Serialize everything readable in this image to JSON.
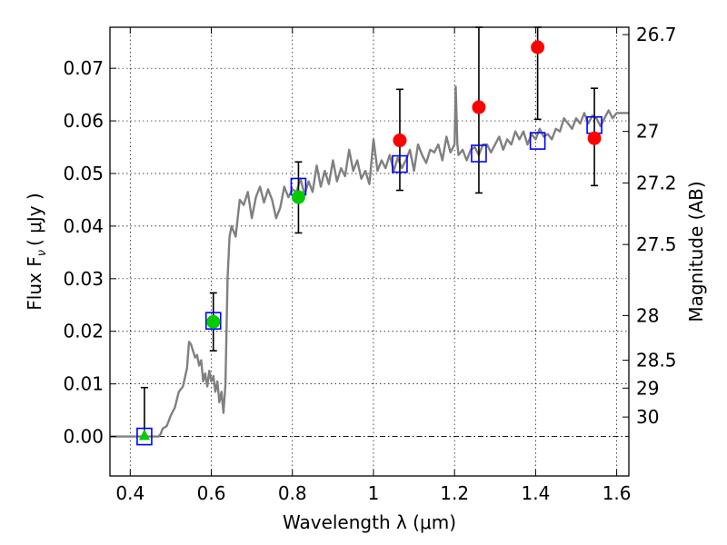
{
  "chart_data": {
    "type": "scatter",
    "xlabel": "Wavelength  λ (μm)",
    "ylabel_left": "Flux  F",
    "ylabel_left_sub": "ν",
    "ylabel_left_unit": "( μJy )",
    "ylabel_right": "Magnitude (AB)",
    "xlim": [
      0.35,
      1.63
    ],
    "ylim": [
      -0.0075,
      0.0778
    ],
    "grid": true,
    "x_ticks": [
      0.4,
      0.6,
      0.8,
      1.0,
      1.2,
      1.4,
      1.6
    ],
    "x_tick_labels": [
      "0.4",
      "0.6",
      "0.8",
      "1",
      "1.2",
      "1.4",
      "1.6"
    ],
    "y_ticks": [
      0.0,
      0.01,
      0.02,
      0.03,
      0.04,
      0.05,
      0.06,
      0.07
    ],
    "y_tick_labels": [
      "0.00",
      "0.01",
      "0.02",
      "0.03",
      "0.04",
      "0.05",
      "0.06",
      "0.07"
    ],
    "mag_ticks": [
      {
        "label": "26.7",
        "flux": 0.0764
      },
      {
        "label": "27",
        "flux": 0.058
      },
      {
        "label": "27.2",
        "flux": 0.0482
      },
      {
        "label": "27.5",
        "flux": 0.0365
      },
      {
        "label": "28",
        "flux": 0.023
      },
      {
        "label": "28.5",
        "flux": 0.0145
      },
      {
        "label": "29",
        "flux": 0.0092
      },
      {
        "label": "30",
        "flux": 0.0037
      }
    ],
    "model_spectrum": {
      "color": "#808080",
      "x": [
        0.35,
        0.47,
        0.475,
        0.48,
        0.49,
        0.5,
        0.51,
        0.52,
        0.53,
        0.54,
        0.545,
        0.55,
        0.56,
        0.565,
        0.57,
        0.575,
        0.58,
        0.585,
        0.59,
        0.595,
        0.6,
        0.605,
        0.61,
        0.615,
        0.62,
        0.625,
        0.63,
        0.635,
        0.64,
        0.645,
        0.65,
        0.66,
        0.67,
        0.68,
        0.69,
        0.7,
        0.71,
        0.72,
        0.73,
        0.74,
        0.75,
        0.76,
        0.77,
        0.78,
        0.79,
        0.8,
        0.81,
        0.82,
        0.83,
        0.84,
        0.85,
        0.86,
        0.87,
        0.88,
        0.89,
        0.9,
        0.91,
        0.92,
        0.93,
        0.94,
        0.95,
        0.96,
        0.97,
        0.98,
        0.99,
        1.0,
        1.01,
        1.02,
        1.03,
        1.04,
        1.05,
        1.06,
        1.07,
        1.08,
        1.09,
        1.1,
        1.11,
        1.12,
        1.13,
        1.14,
        1.15,
        1.16,
        1.17,
        1.18,
        1.19,
        1.2,
        1.203,
        1.207,
        1.21,
        1.22,
        1.23,
        1.24,
        1.25,
        1.26,
        1.27,
        1.28,
        1.29,
        1.3,
        1.31,
        1.32,
        1.33,
        1.34,
        1.35,
        1.36,
        1.37,
        1.38,
        1.39,
        1.4,
        1.41,
        1.42,
        1.43,
        1.44,
        1.45,
        1.46,
        1.47,
        1.48,
        1.49,
        1.5,
        1.51,
        1.52,
        1.53,
        1.54,
        1.55,
        1.56,
        1.57,
        1.58,
        1.59,
        1.6,
        1.61,
        1.63
      ],
      "y": [
        0.0,
        0.0,
        0.0005,
        0.0015,
        0.002,
        0.004,
        0.0055,
        0.0085,
        0.0095,
        0.013,
        0.018,
        0.0175,
        0.015,
        0.0155,
        0.0135,
        0.0145,
        0.0105,
        0.012,
        0.0095,
        0.0125,
        0.0105,
        0.0115,
        0.0085,
        0.0105,
        0.0065,
        0.0085,
        0.0045,
        0.01,
        0.03,
        0.038,
        0.04,
        0.038,
        0.045,
        0.044,
        0.0465,
        0.0415,
        0.0455,
        0.0475,
        0.0445,
        0.047,
        0.045,
        0.0415,
        0.0435,
        0.0475,
        0.0455,
        0.047,
        0.0465,
        0.049,
        0.046,
        0.0485,
        0.0465,
        0.0515,
        0.0475,
        0.0505,
        0.048,
        0.0525,
        0.0485,
        0.051,
        0.0495,
        0.0545,
        0.0505,
        0.0525,
        0.049,
        0.0505,
        0.048,
        0.0565,
        0.0505,
        0.0525,
        0.051,
        0.0535,
        0.0505,
        0.053,
        0.051,
        0.0525,
        0.0545,
        0.0505,
        0.0555,
        0.0535,
        0.052,
        0.0545,
        0.054,
        0.0555,
        0.0525,
        0.057,
        0.054,
        0.0555,
        0.0665,
        0.0555,
        0.0535,
        0.0545,
        0.0525,
        0.0545,
        0.055,
        0.0535,
        0.0555,
        0.0555,
        0.054,
        0.0555,
        0.057,
        0.0545,
        0.0565,
        0.0555,
        0.058,
        0.0565,
        0.058,
        0.0555,
        0.0575,
        0.0565,
        0.0585,
        0.057,
        0.0575,
        0.0565,
        0.0585,
        0.058,
        0.0605,
        0.0595,
        0.0585,
        0.0605,
        0.0595,
        0.0615,
        0.0595,
        0.061,
        0.0605,
        0.059,
        0.0605,
        0.062,
        0.0605,
        0.0615,
        0.0615,
        0.0615
      ]
    },
    "series": [
      {
        "marker": "open-square",
        "color": "#0000ff",
        "points": [
          [
            0.435,
            0.0
          ],
          [
            0.605,
            0.022
          ],
          [
            0.815,
            0.0475
          ],
          [
            1.065,
            0.0518
          ],
          [
            1.26,
            0.0538
          ],
          [
            1.405,
            0.0562
          ],
          [
            1.545,
            0.0592
          ]
        ]
      },
      {
        "marker": "filled-circle",
        "color": "#ff0000",
        "points": [
          [
            1.065,
            0.0563
          ],
          [
            1.26,
            0.0626
          ],
          [
            1.405,
            0.074
          ],
          [
            1.545,
            0.0567
          ]
        ]
      },
      {
        "marker": "filled-circle",
        "color": "#00cc00",
        "points": [
          [
            0.605,
            0.0218
          ],
          [
            0.815,
            0.0455
          ]
        ]
      },
      {
        "marker": "filled-triangle",
        "color": "#00cc00",
        "points": [
          [
            0.435,
            0.0002
          ]
        ]
      }
    ],
    "error_bars": [
      {
        "x": 0.435,
        "low": 0.0,
        "high": 0.0093
      },
      {
        "x": 0.605,
        "low": 0.0163,
        "high": 0.0273
      },
      {
        "x": 0.815,
        "low": 0.0387,
        "high": 0.0522
      },
      {
        "x": 1.065,
        "low": 0.0468,
        "high": 0.066
      },
      {
        "x": 1.26,
        "low": 0.0463,
        "high": 0.0778
      },
      {
        "x": 1.405,
        "low": 0.0603,
        "high": 0.0778
      },
      {
        "x": 1.545,
        "low": 0.0477,
        "high": 0.0662
      }
    ]
  }
}
